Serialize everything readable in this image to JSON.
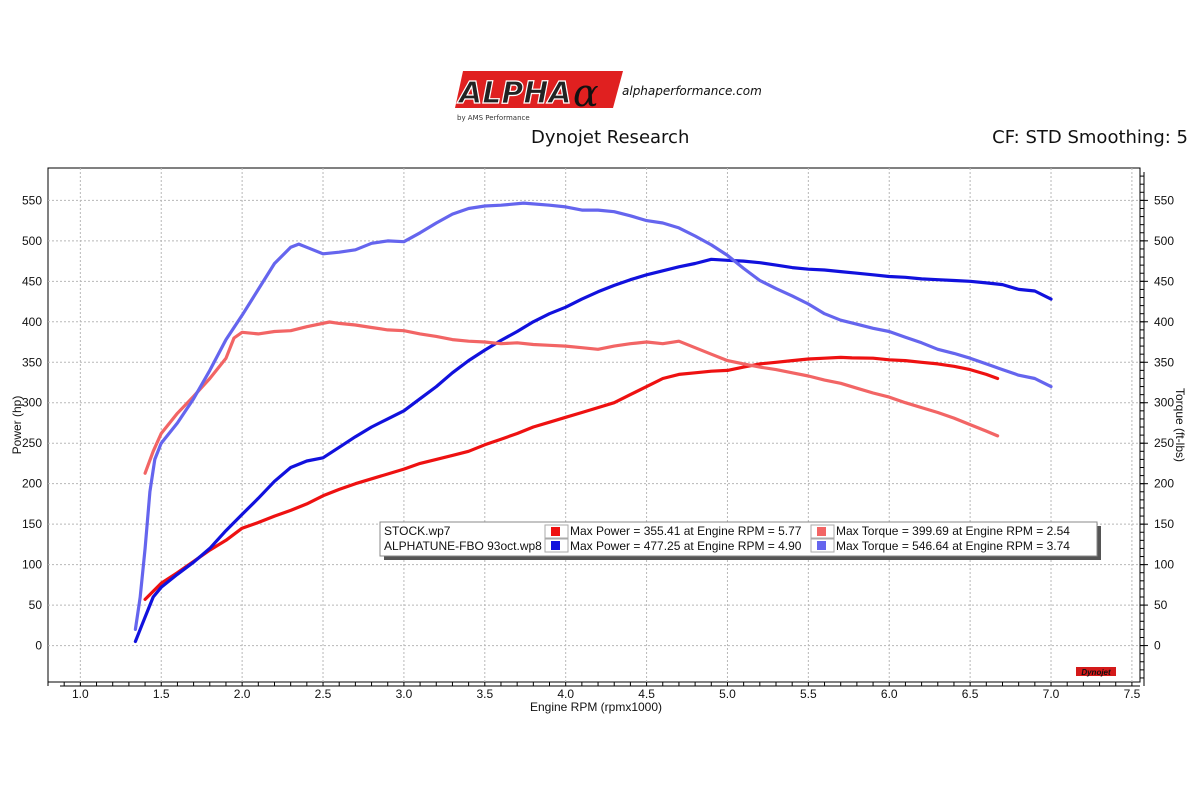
{
  "brand": {
    "logo_text": "ALPHA",
    "logo_symbol": "α",
    "logo_sub": "by AMS Performance",
    "url": "alphaperformance.com"
  },
  "header": {
    "title": "Dynojet Research",
    "settings": "CF: STD Smoothing: 5"
  },
  "chart_data": {
    "type": "line",
    "xlabel": "Engine RPM (rpmx1000)",
    "ylabel": "Power (hp)",
    "y2label": "Torque (ft-lbs)",
    "xlim": [
      0.8,
      7.55
    ],
    "ylim": [
      -45,
      590
    ],
    "xticks": [
      "1.0",
      "1.5",
      "2.0",
      "2.5",
      "3.0",
      "3.5",
      "4.0",
      "4.5",
      "5.0",
      "5.5",
      "6.0",
      "6.5",
      "7.0",
      "7.5"
    ],
    "yticks": [
      "0",
      "50",
      "100",
      "150",
      "200",
      "250",
      "300",
      "350",
      "400",
      "450",
      "500",
      "550"
    ],
    "grid": true,
    "legend_position": "center-right",
    "watermark": "Dynojet",
    "series": [
      {
        "name": "STOCK.wp7",
        "measure": "Power",
        "color": "#ee1111",
        "x": [
          1.4,
          1.5,
          1.6,
          1.7,
          1.8,
          1.9,
          2.0,
          2.1,
          2.2,
          2.3,
          2.4,
          2.5,
          2.6,
          2.7,
          2.8,
          2.9,
          3.0,
          3.1,
          3.2,
          3.3,
          3.4,
          3.5,
          3.6,
          3.7,
          3.8,
          3.9,
          4.0,
          4.1,
          4.2,
          4.3,
          4.4,
          4.5,
          4.6,
          4.7,
          4.8,
          4.9,
          5.0,
          5.1,
          5.2,
          5.3,
          5.4,
          5.5,
          5.6,
          5.7,
          5.77,
          5.9,
          6.0,
          6.1,
          6.2,
          6.3,
          6.4,
          6.5,
          6.6,
          6.67
        ],
        "y": [
          57,
          77,
          90,
          104,
          118,
          130,
          145,
          152,
          160,
          167,
          175,
          185,
          193,
          200,
          206,
          212,
          218,
          225,
          230,
          235,
          240,
          248,
          255,
          262,
          270,
          276,
          282,
          288,
          294,
          300,
          310,
          320,
          330,
          335,
          337,
          339,
          340,
          344,
          348,
          350,
          352,
          354,
          355,
          356,
          355.41,
          355,
          353,
          352,
          350,
          348,
          345,
          341,
          335,
          330
        ]
      },
      {
        "name": "ALPHATUNE-FBO 93oct.wp8",
        "measure": "Power",
        "color": "#1111dd",
        "x": [
          1.34,
          1.38,
          1.42,
          1.45,
          1.5,
          1.6,
          1.7,
          1.8,
          1.9,
          2.0,
          2.1,
          2.2,
          2.3,
          2.4,
          2.5,
          2.6,
          2.7,
          2.8,
          2.9,
          3.0,
          3.1,
          3.2,
          3.3,
          3.4,
          3.5,
          3.6,
          3.7,
          3.8,
          3.9,
          4.0,
          4.1,
          4.2,
          4.3,
          4.4,
          4.5,
          4.6,
          4.7,
          4.8,
          4.9,
          5.0,
          5.1,
          5.2,
          5.3,
          5.4,
          5.5,
          5.6,
          5.7,
          5.8,
          5.9,
          6.0,
          6.1,
          6.2,
          6.3,
          6.4,
          6.5,
          6.6,
          6.7,
          6.8,
          6.9,
          7.0
        ],
        "y": [
          5,
          25,
          45,
          60,
          72,
          88,
          103,
          120,
          142,
          162,
          182,
          203,
          220,
          228,
          232,
          245,
          258,
          270,
          280,
          290,
          305,
          320,
          337,
          352,
          365,
          377,
          388,
          400,
          410,
          418,
          428,
          437,
          445,
          452,
          458,
          463,
          468,
          472,
          477.25,
          476,
          475,
          473,
          470,
          467,
          465,
          464,
          462,
          460,
          458,
          456,
          455,
          453,
          452,
          451,
          450,
          448,
          446,
          440,
          438,
          428
        ]
      },
      {
        "name": "STOCK.wp7",
        "measure": "Torque",
        "color": "#f26565",
        "x": [
          1.4,
          1.45,
          1.5,
          1.6,
          1.7,
          1.8,
          1.9,
          1.95,
          2.0,
          2.1,
          2.2,
          2.3,
          2.4,
          2.54,
          2.6,
          2.7,
          2.8,
          2.9,
          3.0,
          3.1,
          3.2,
          3.3,
          3.4,
          3.5,
          3.6,
          3.7,
          3.8,
          3.9,
          4.0,
          4.1,
          4.2,
          4.3,
          4.4,
          4.5,
          4.6,
          4.7,
          4.8,
          4.9,
          5.0,
          5.1,
          5.2,
          5.3,
          5.4,
          5.5,
          5.6,
          5.7,
          5.8,
          5.9,
          6.0,
          6.1,
          6.2,
          6.3,
          6.4,
          6.5,
          6.6,
          6.67
        ],
        "y": [
          213,
          240,
          262,
          287,
          308,
          330,
          355,
          380,
          387,
          385,
          388,
          389,
          394,
          399.69,
          398,
          396,
          393,
          390,
          389,
          385,
          382,
          378,
          376,
          375,
          373,
          374,
          372,
          371,
          370,
          368,
          366,
          370,
          373,
          375,
          373,
          376,
          368,
          360,
          352,
          348,
          344,
          341,
          337,
          333,
          328,
          324,
          318,
          312,
          307,
          300,
          294,
          288,
          281,
          273,
          265,
          259
        ]
      },
      {
        "name": "ALPHATUNE-FBO 93oct.wp8",
        "measure": "Torque",
        "color": "#6565ee",
        "x": [
          1.34,
          1.37,
          1.4,
          1.43,
          1.46,
          1.5,
          1.6,
          1.7,
          1.8,
          1.9,
          2.0,
          2.1,
          2.2,
          2.3,
          2.35,
          2.4,
          2.5,
          2.6,
          2.7,
          2.8,
          2.9,
          3.0,
          3.1,
          3.2,
          3.3,
          3.4,
          3.5,
          3.6,
          3.74,
          3.9,
          4.0,
          4.1,
          4.2,
          4.3,
          4.4,
          4.5,
          4.6,
          4.7,
          4.8,
          4.9,
          5.0,
          5.1,
          5.2,
          5.3,
          5.4,
          5.5,
          5.6,
          5.7,
          5.8,
          5.9,
          6.0,
          6.1,
          6.2,
          6.3,
          6.4,
          6.5,
          6.6,
          6.7,
          6.8,
          6.9,
          7.0
        ],
        "y": [
          20,
          60,
          120,
          190,
          230,
          250,
          275,
          305,
          340,
          378,
          408,
          440,
          472,
          492,
          496,
          492,
          484,
          486,
          489,
          497,
          500,
          499,
          510,
          522,
          533,
          540,
          543,
          544,
          546.64,
          544,
          542,
          538,
          538,
          536,
          531,
          525,
          522,
          516,
          506,
          495,
          482,
          466,
          451,
          441,
          432,
          422,
          410,
          402,
          397,
          392,
          388,
          381,
          374,
          366,
          361,
          355,
          348,
          341,
          334,
          330,
          320
        ]
      }
    ],
    "legend": {
      "files": [
        "STOCK.wp7",
        "ALPHATUNE-FBO 93oct.wp8"
      ],
      "rows": [
        {
          "power": "Max Power = 355.41 at Engine RPM = 5.77",
          "torque": "Max Torque = 399.69 at Engine RPM = 2.54"
        },
        {
          "power": "Max Power = 477.25 at Engine RPM = 4.90",
          "torque": "Max Torque = 546.64 at Engine RPM = 3.74"
        }
      ]
    }
  }
}
